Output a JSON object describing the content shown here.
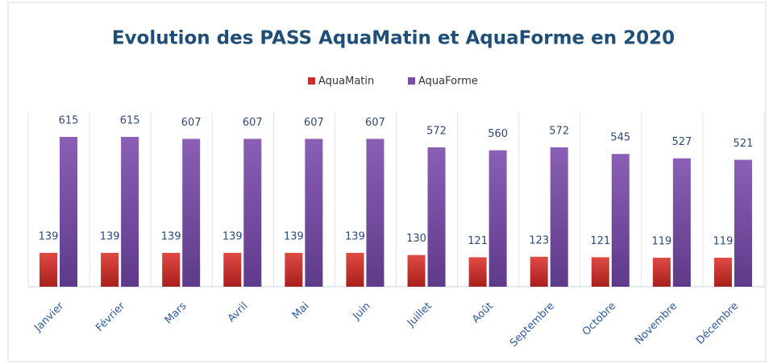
{
  "chart_data": {
    "type": "bar",
    "title": "Evolution des PASS AquaMatin et AquaForme en 2020",
    "categories": [
      "Janvier",
      "Février",
      "Mars",
      "Avril",
      "Mai",
      "Juin",
      "Juillet",
      "Août",
      "Septembre",
      "Octobre",
      "Novembre",
      "Décembre"
    ],
    "series": [
      {
        "name": "AquaMatin",
        "color": "#c9302c",
        "values": [
          139,
          139,
          139,
          139,
          139,
          139,
          130,
          121,
          123,
          121,
          119,
          119
        ]
      },
      {
        "name": "AquaForme",
        "color": "#7b4fa6",
        "values": [
          615,
          615,
          607,
          607,
          607,
          607,
          572,
          560,
          572,
          545,
          527,
          521
        ]
      }
    ],
    "legend": "top"
  }
}
